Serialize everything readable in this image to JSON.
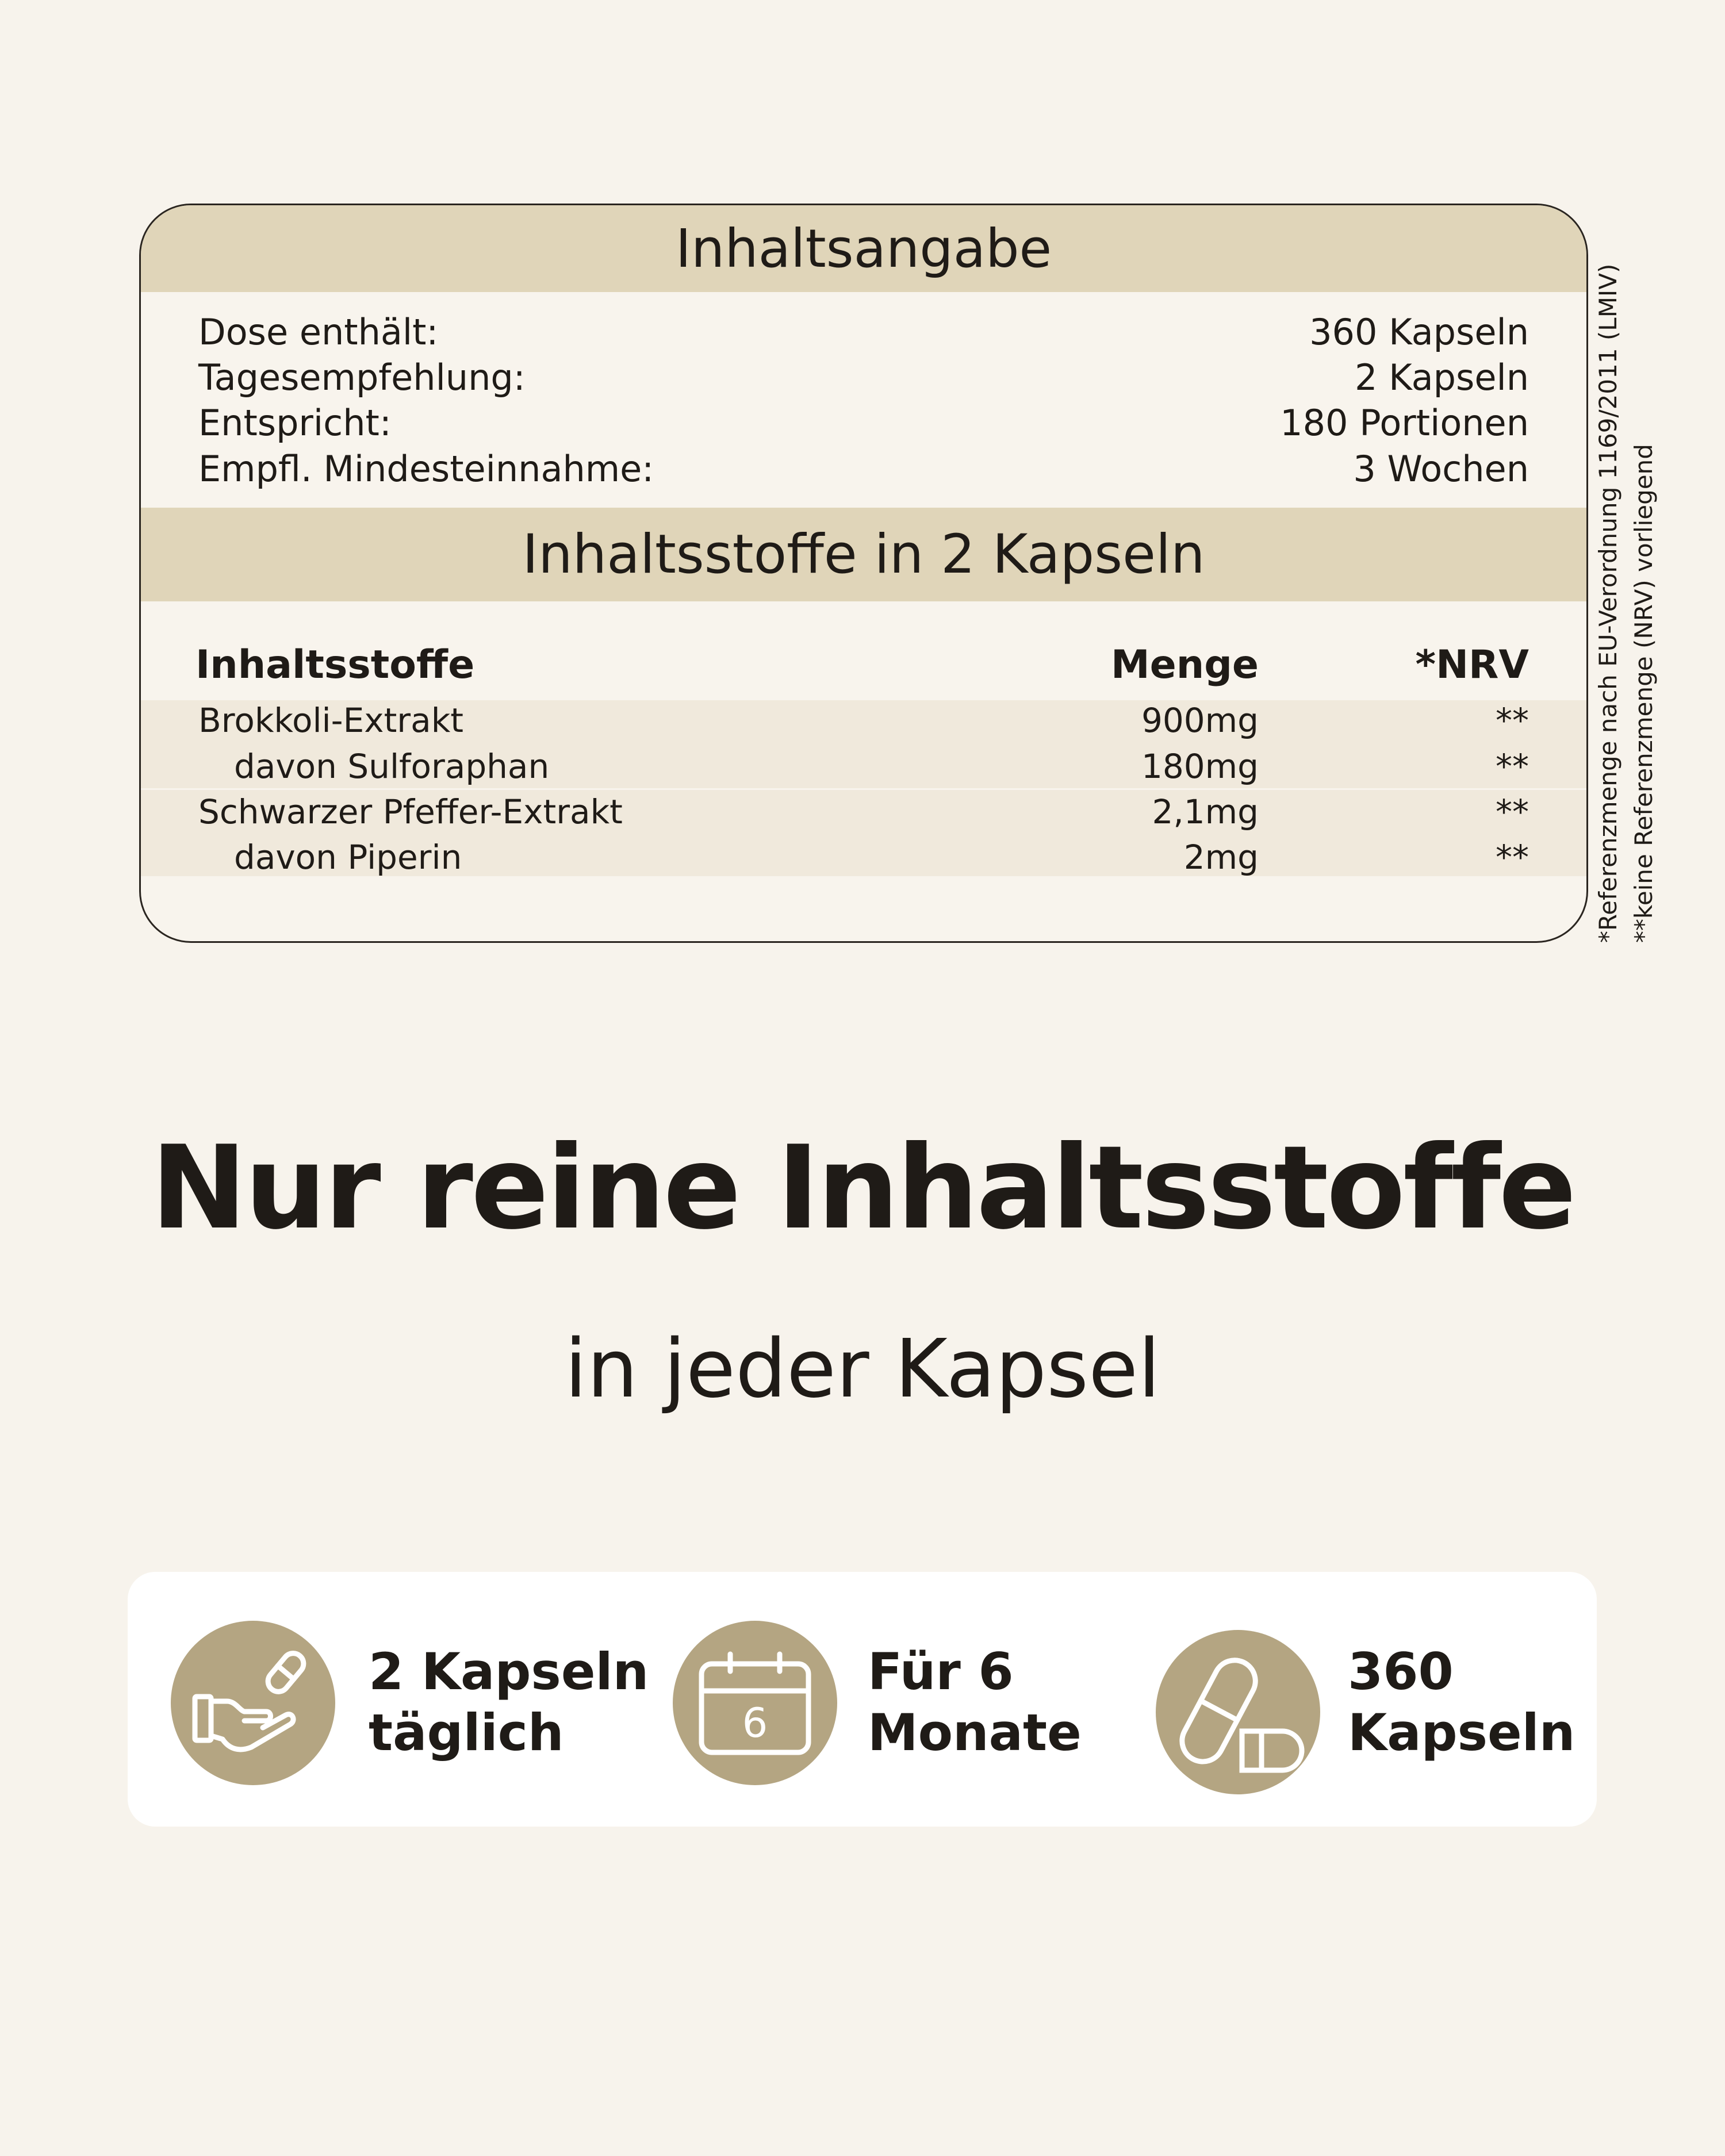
{
  "card": {
    "title": "Inhaltsangabe",
    "info": [
      {
        "label": "Dose enthält:",
        "value": "360 Kapseln"
      },
      {
        "label": "Tagesempfehlung:",
        "value": "2 Kapseln"
      },
      {
        "label": "Entspricht:",
        "value": "180 Portionen"
      },
      {
        "label": "Empfl. Mindesteinnahme:",
        "value": "3 Wochen"
      }
    ],
    "ingredients_title": "Inhaltsstoffe in 2 Kapseln",
    "columns": [
      "Inhaltsstoffe",
      "Menge",
      "*NRV"
    ],
    "rows": [
      {
        "name": "Brokkoli-Extrakt",
        "amount": "900mg",
        "nrv": "**"
      },
      {
        "name": "davon Sulforaphan",
        "amount": "180mg",
        "nrv": "**"
      },
      {
        "name": "Schwarzer Pfeffer-Extrakt",
        "amount": "2,1mg",
        "nrv": "**"
      },
      {
        "name": "davon Piperin",
        "amount": "2mg",
        "nrv": "**"
      }
    ]
  },
  "notes": [
    "*Referenzmenge nach EU-Verordnung 1169/2011 (LMIV)",
    "**keine Referenzmenge (NRV) vorliegend"
  ],
  "headline": "Nur reine Inhaltsstoffe",
  "subheadline": "in jeder Kapsel",
  "features": [
    {
      "icon": "hand-capsule-icon",
      "line1": "2 Kapseln",
      "line2": "täglich"
    },
    {
      "icon": "calendar-icon",
      "badge": "6",
      "line1": "Für 6",
      "line2": "Monate"
    },
    {
      "icon": "capsules-icon",
      "line1": "360",
      "line2": "Kapseln"
    }
  ],
  "colors": {
    "background": "#f7f3ec",
    "band": "#e0d5b9",
    "stripe": "#f0e9dc",
    "accent": "#b4a582",
    "text": "#1f1b17"
  }
}
